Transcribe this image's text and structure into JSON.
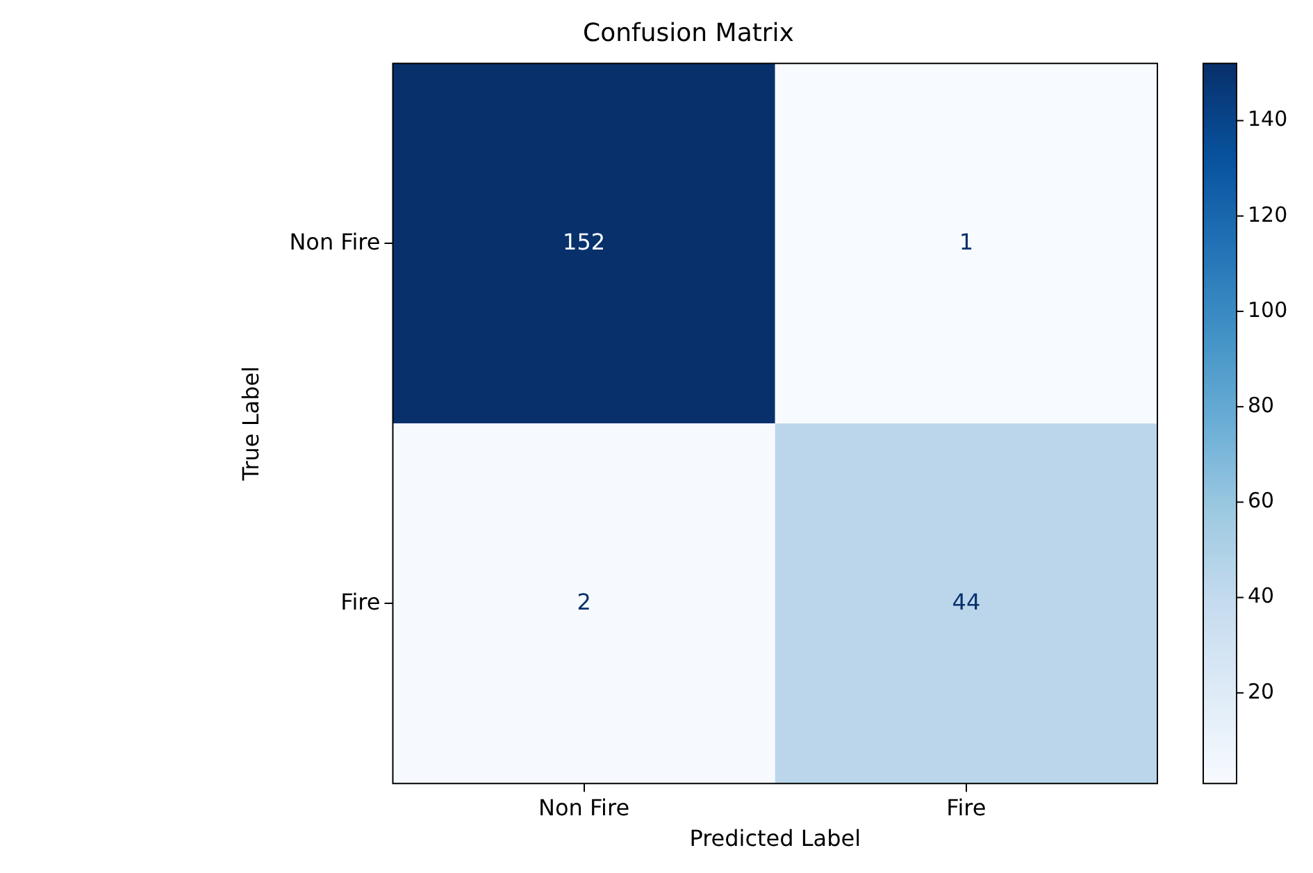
{
  "chart_data": {
    "type": "heatmap",
    "title": "Confusion Matrix",
    "xlabel": "Predicted Label",
    "ylabel": "True Label",
    "categories": [
      "Non Fire",
      "Fire"
    ],
    "y_categories": [
      "Non Fire",
      "Fire"
    ],
    "cells": [
      [
        152,
        1
      ],
      [
        2,
        44
      ]
    ],
    "clim": [
      1,
      152
    ],
    "cticks": [
      20,
      40,
      60,
      80,
      100,
      120,
      140
    ],
    "data_labels": true,
    "grid": false
  }
}
